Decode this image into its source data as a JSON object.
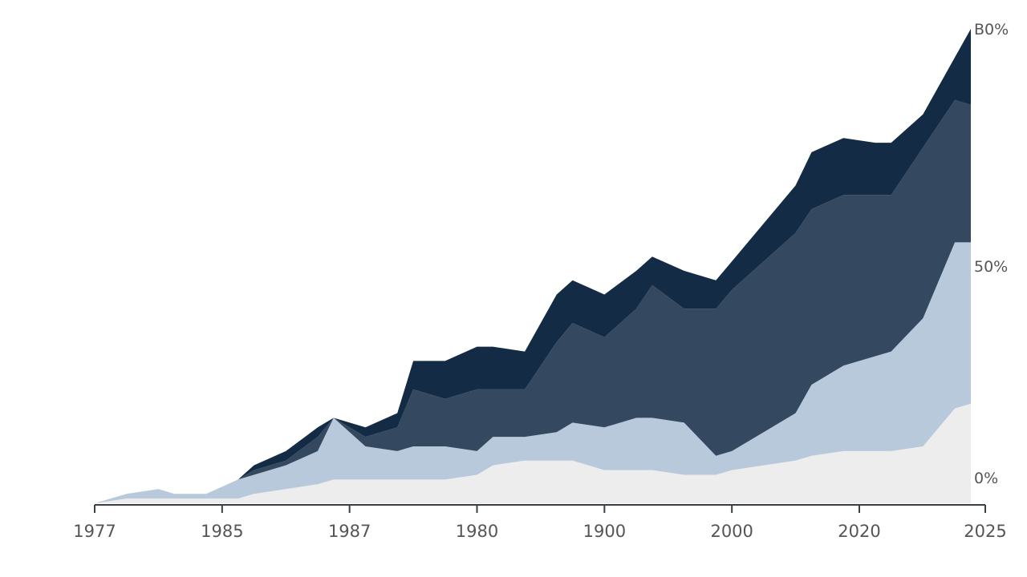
{
  "chart_data": {
    "type": "area",
    "stacked": true,
    "grid": false,
    "legend": "none",
    "x": [
      0,
      2,
      4,
      5,
      7,
      9,
      10,
      12,
      14,
      15,
      17,
      19,
      20,
      22,
      24,
      25,
      27,
      29,
      30,
      32,
      34,
      35,
      37,
      39,
      40,
      42,
      44,
      45,
      47,
      49,
      50,
      52,
      54,
      55
    ],
    "x_tick_labels": [
      "1977",
      "1985",
      "1987",
      "1980",
      "1900",
      "2000",
      "2020",
      "2025"
    ],
    "x_tick_positions": [
      0,
      8,
      16,
      24,
      32,
      40,
      48,
      55
    ],
    "y_tick_labels": [
      "0%",
      "50%",
      "B0%"
    ],
    "y_tick_values": [
      0,
      50,
      100
    ],
    "ylim": [
      0,
      100
    ],
    "series": [
      {
        "values": [
          0,
          1,
          1,
          1,
          1,
          1,
          2,
          3,
          4,
          5,
          5,
          5,
          5,
          5,
          6,
          8,
          9,
          9,
          9,
          7,
          7,
          7,
          6,
          6,
          7,
          8,
          9,
          10,
          11,
          11,
          11,
          12,
          20,
          21
        ],
        "color": "#ededed"
      },
      {
        "values": [
          0,
          1,
          2,
          1,
          1,
          4,
          4,
          5,
          7,
          13,
          7,
          6,
          7,
          7,
          5,
          6,
          5,
          6,
          8,
          9,
          11,
          11,
          11,
          4,
          4,
          7,
          10,
          15,
          18,
          20,
          21,
          27,
          35,
          34
        ],
        "color": "#b9c9dc"
      },
      {
        "values": [
          0,
          0,
          0,
          0,
          0,
          0,
          1,
          1,
          3,
          0,
          2,
          5,
          12,
          10,
          13,
          10,
          10,
          19,
          21,
          19,
          23,
          28,
          24,
          31,
          34,
          36,
          38,
          37,
          36,
          34,
          33,
          36,
          30,
          29
        ],
        "color": "#34495f"
      },
      {
        "values": [
          0,
          0,
          0,
          0,
          0,
          0,
          1,
          2,
          2,
          0,
          2,
          3,
          6,
          8,
          9,
          9,
          8,
          10,
          9,
          9,
          8,
          6,
          8,
          6,
          6,
          8,
          10,
          12,
          12,
          11,
          11,
          7,
          9,
          16
        ],
        "color": "#132b44"
      }
    ]
  }
}
